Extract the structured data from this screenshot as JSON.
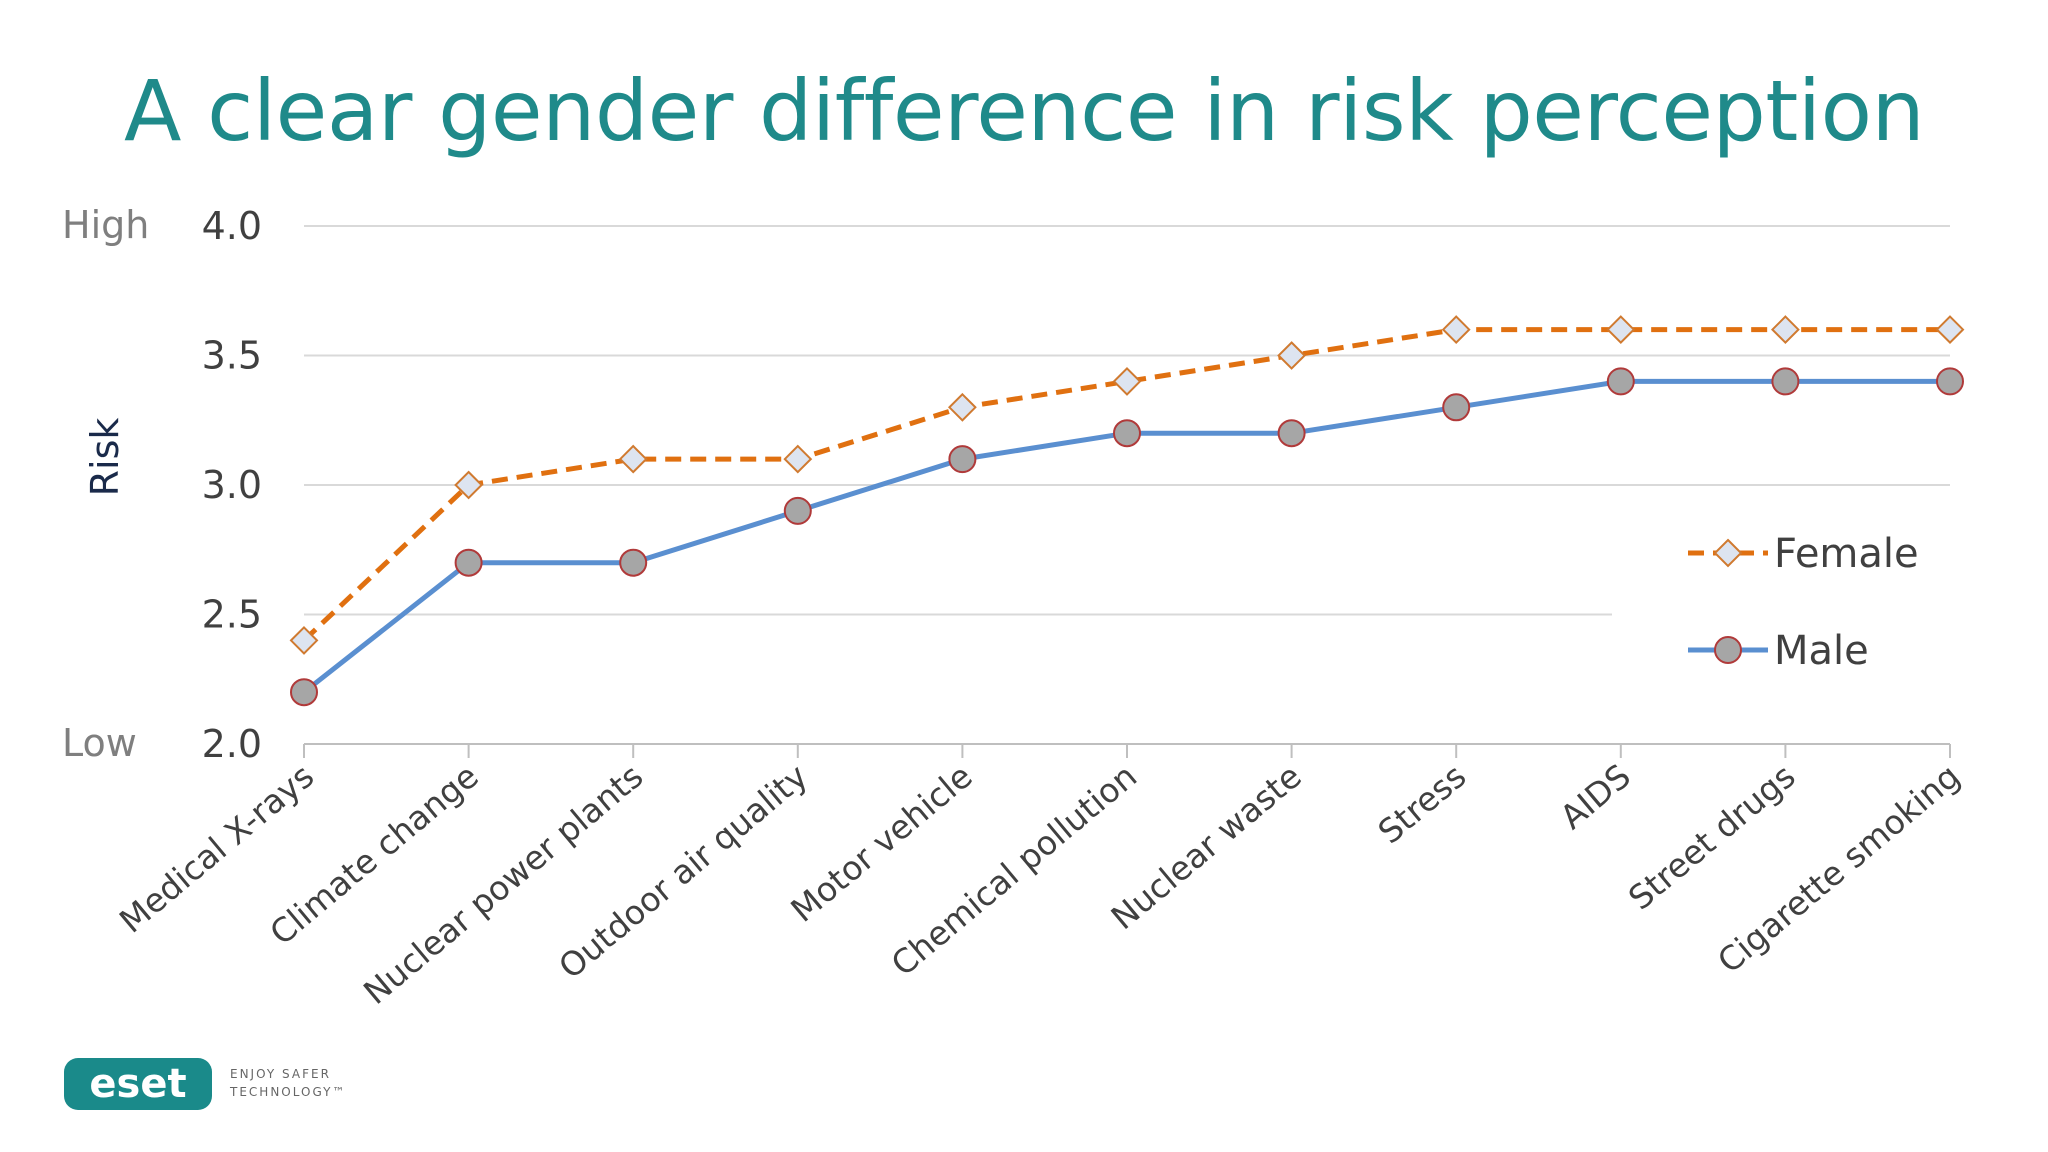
{
  "title": "A clear gender difference in risk perception",
  "logo": {
    "brand": "eset",
    "tagline_line1": "ENJOY SAFER",
    "tagline_line2": "TECHNOLOGY™",
    "color": "#1a8a8a"
  },
  "chart_data": {
    "type": "line",
    "ylabel": "Risk",
    "y_level_labels": {
      "high": "High",
      "low": "Low"
    },
    "ylim": [
      2.0,
      4.0
    ],
    "yticks": [
      "2.0",
      "2.5",
      "3.0",
      "3.5",
      "4.0"
    ],
    "grid": true,
    "legend_position": "right",
    "categories": [
      "Medical X-rays",
      "Climate change",
      "Nuclear power plants",
      "Outdoor air quality",
      "Motor vehicle",
      "Chemical pollution",
      "Nuclear waste",
      "Stress",
      "AIDS",
      "Street drugs",
      "Cigarette smoking"
    ],
    "series": [
      {
        "name": "Female",
        "values": [
          2.4,
          3.0,
          3.1,
          3.1,
          3.3,
          3.4,
          3.5,
          3.6,
          3.6,
          3.6,
          3.6
        ],
        "color": "#e07010",
        "line_style": "dashed",
        "marker": "diamond"
      },
      {
        "name": "Male",
        "values": [
          2.2,
          2.7,
          2.7,
          2.9,
          3.1,
          3.2,
          3.2,
          3.3,
          3.4,
          3.4,
          3.4
        ],
        "color": "#5a8fd0",
        "line_style": "solid",
        "marker": "circle"
      }
    ]
  }
}
